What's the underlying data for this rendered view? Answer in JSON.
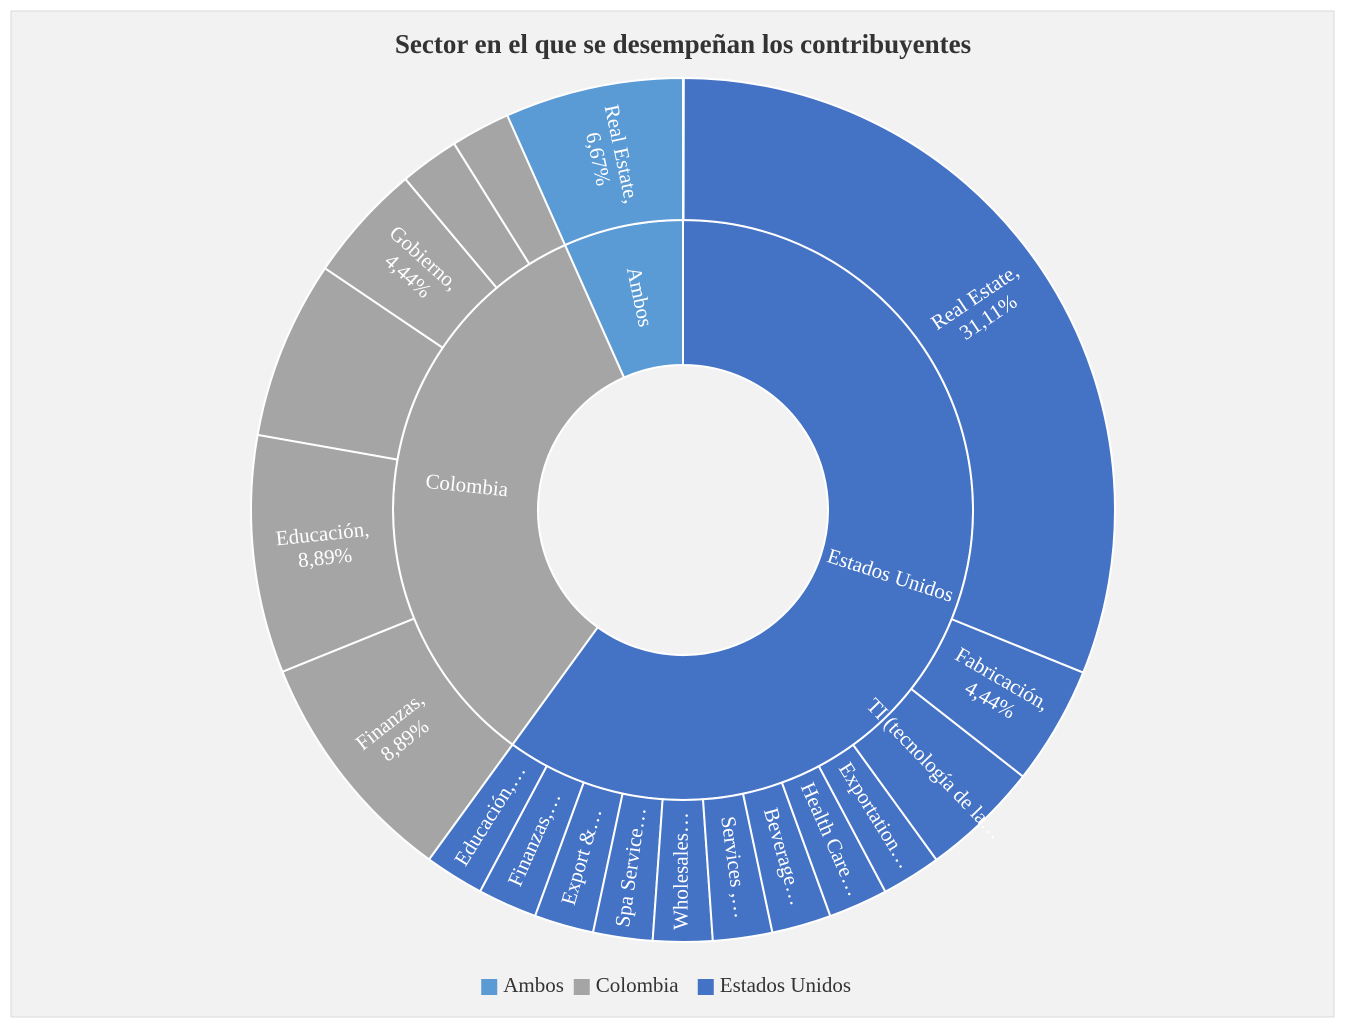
{
  "chart_data": {
    "type": "sunburst",
    "title": "Sector en el que se desempeñan los contribuyentes",
    "categories": [
      "Ambos",
      "Colombia",
      "Estados Unidos"
    ],
    "values": [
      6.67,
      33.33,
      60
    ],
    "colors": [
      "#5b9bd5",
      "#a5a5a5",
      "#4472c4"
    ],
    "children": [
      [
        {
          "label": "Real Estate,",
          "value": 6.67,
          "value_label": "6,67%"
        }
      ],
      [
        {
          "label": null,
          "value": 2.22
        },
        {
          "label": null,
          "value": 2.22
        },
        {
          "label": "Gobierno,",
          "value": 4.44,
          "value_label": "4,44%"
        },
        {
          "label": null,
          "value": 6.67
        },
        {
          "label": "Educación,",
          "value": 8.89,
          "value_label": "8,89%"
        },
        {
          "label": "Finanzas,",
          "value": 8.89,
          "value_label": "8,89%"
        }
      ],
      [
        {
          "label": "Educación,…",
          "value": 2.22
        },
        {
          "label": "Finanzas,…",
          "value": 2.22
        },
        {
          "label": "Export &…",
          "value": 2.22
        },
        {
          "label": "Spa Service…",
          "value": 2.22
        },
        {
          "label": "Wholesales…",
          "value": 2.22
        },
        {
          "label": "Services ,…",
          "value": 2.22
        },
        {
          "label": "Beverage…",
          "value": 2.22
        },
        {
          "label": "Health Care…",
          "value": 2.22
        },
        {
          "label": "Exportation…",
          "value": 2.22
        },
        {
          "label": "TI (tecnología de la…",
          "value": 4.44
        },
        {
          "label": "Fabricación,",
          "value": 4.44,
          "value_label": "4,44%"
        },
        {
          "label": "Real Estate,",
          "value": 31.11,
          "value_label": "31,11%"
        }
      ]
    ],
    "legend": "bottom"
  }
}
